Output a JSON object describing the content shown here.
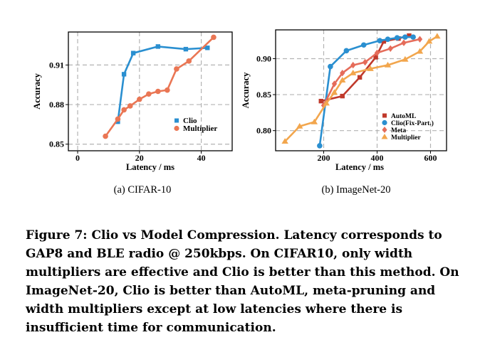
{
  "chart_data": [
    {
      "type": "line",
      "subtitle": "(a) CIFAR-10",
      "xlabel": "Latency / ms",
      "ylabel": "Accuracy",
      "xlim": [
        -3,
        50
      ],
      "ylim": [
        0.845,
        0.935
      ],
      "xticks": [
        0,
        20,
        40
      ],
      "yticks": [
        0.85,
        0.88,
        0.91
      ],
      "ytick_labels": [
        "0.85",
        "0.88",
        "0.91"
      ],
      "grid": true,
      "legend": "bottom-right",
      "series": [
        {
          "name": "Clio",
          "marker": "square",
          "color": "#2a8fd0",
          "x": [
            13,
            15,
            18,
            26,
            35,
            42
          ],
          "y": [
            0.867,
            0.903,
            0.919,
            0.924,
            0.922,
            0.923
          ]
        },
        {
          "name": "Multiplier",
          "marker": "circle",
          "color": "#ea7654",
          "x": [
            9,
            13,
            15,
            17,
            20,
            23,
            26,
            29,
            32,
            36,
            44
          ],
          "y": [
            0.856,
            0.869,
            0.876,
            0.879,
            0.884,
            0.888,
            0.89,
            0.891,
            0.907,
            0.913,
            0.931
          ]
        }
      ]
    },
    {
      "type": "line",
      "subtitle": "(b) ImageNet-20",
      "xlabel": "Latency / ms",
      "ylabel": "Accuracy",
      "xlim": [
        20,
        660
      ],
      "ylim": [
        0.772,
        0.94
      ],
      "xticks": [
        200,
        400,
        600
      ],
      "yticks": [
        0.8,
        0.85,
        0.9
      ],
      "ytick_labels": [
        "0.80",
        "0.85",
        "0.90"
      ],
      "grid": true,
      "legend": "bottom-right",
      "series": [
        {
          "name": "AutoML",
          "marker": "square",
          "color": "#c0392b",
          "x": [
            190,
            270,
            335,
            395,
            425,
            480,
            520
          ],
          "y": [
            0.841,
            0.848,
            0.874,
            0.902,
            0.924,
            0.928,
            0.932
          ]
        },
        {
          "name": "Clio(Fix-Part.)",
          "marker": "circle",
          "color": "#2a8fd0",
          "x": [
            185,
            225,
            285,
            350,
            410,
            440,
            475,
            505,
            535
          ],
          "y": [
            0.779,
            0.889,
            0.911,
            0.919,
            0.925,
            0.927,
            0.929,
            0.93,
            0.93
          ]
        },
        {
          "name": "Meta",
          "marker": "diamond",
          "color": "#e56c5a",
          "x": [
            200,
            240,
            270,
            310,
            355,
            400,
            450,
            500,
            560
          ],
          "y": [
            0.835,
            0.865,
            0.88,
            0.891,
            0.895,
            0.908,
            0.914,
            0.922,
            0.927
          ]
        },
        {
          "name": "Multiplier",
          "marker": "triangle",
          "color": "#f2a64d",
          "x": [
            55,
            110,
            165,
            210,
            240,
            270,
            310,
            375,
            440,
            505,
            560,
            595,
            625
          ],
          "y": [
            0.785,
            0.806,
            0.812,
            0.838,
            0.853,
            0.87,
            0.88,
            0.886,
            0.891,
            0.899,
            0.91,
            0.924,
            0.931
          ]
        }
      ]
    }
  ],
  "caption": "Figure 7: Clio vs Model Compression. Latency corresponds to GAP8 and BLE radio @ 250kbps. On CIFAR10, only width multipliers are effective and Clio is better than this method. On ImageNet-20, Clio is better than AutoML, meta-pruning and width multipliers except at low latencies where there is insufficient time for communication."
}
